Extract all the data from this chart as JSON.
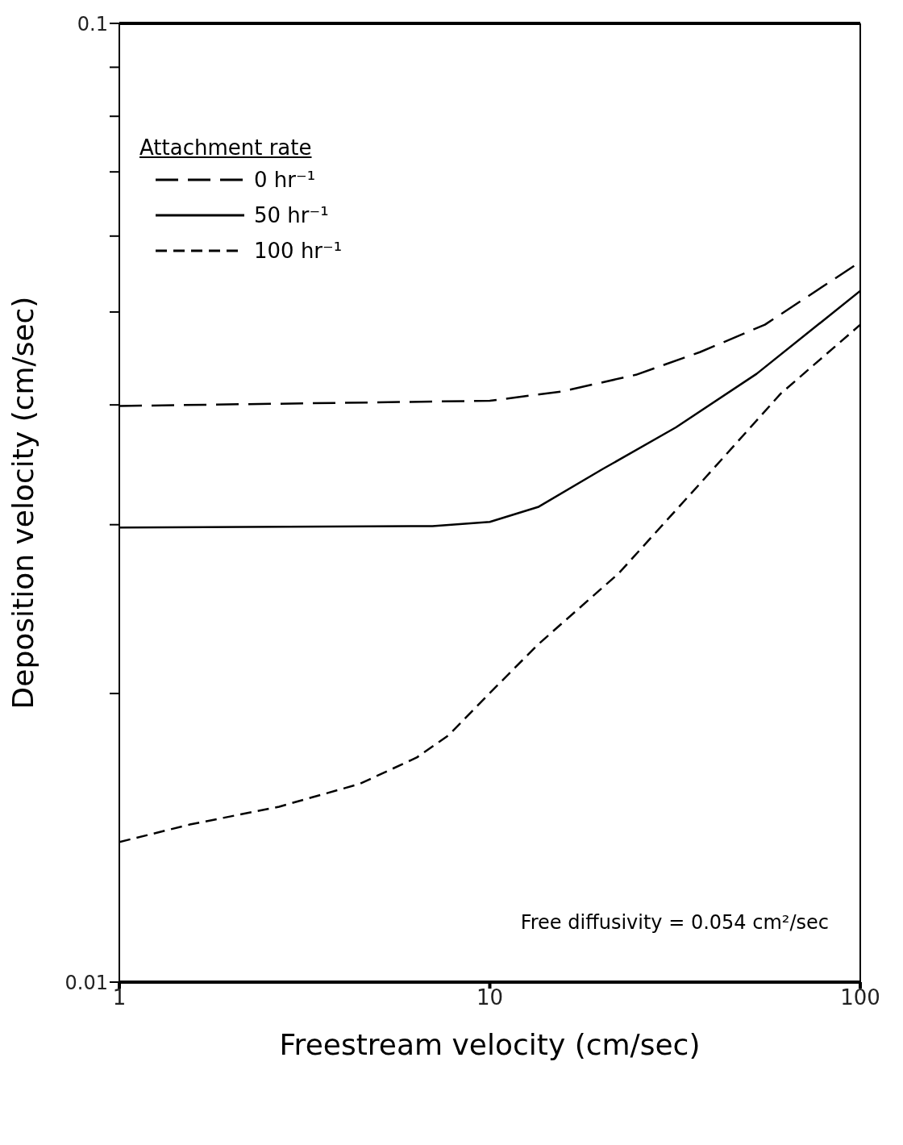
{
  "chart_data": {
    "type": "line",
    "xlabel": "Freestream velocity (cm/sec)",
    "ylabel": "Deposition velocity (cm/sec)",
    "log": "xy",
    "xlim": [
      1,
      100
    ],
    "xticks": [
      1,
      10,
      100
    ],
    "ylim": [
      0.01,
      0.1
    ],
    "yticks": [
      0.01,
      {
        "value": 0.02,
        "label": null
      },
      {
        "value": 0.03,
        "label": null
      },
      {
        "value": 0.04,
        "label": null
      },
      {
        "value": 0.05,
        "label": null
      },
      {
        "value": 0.06,
        "label": null
      },
      {
        "value": 0.07,
        "label": null
      },
      {
        "value": 0.08,
        "label": null
      },
      {
        "value": 0.09,
        "label": null
      },
      0.1
    ],
    "legend": "top left",
    "legend_title": "Attachment rate",
    "marker": "none",
    "annotations": [
      "Free diffusivity = 0.054 cm²/sec"
    ],
    "series": [
      {
        "name": "0 hr⁻¹",
        "color": "#000000",
        "line_style": "dashed",
        "x": [
          1,
          10,
          15.6,
          24.8,
          36.9,
          55.3,
          100
        ],
        "values": [
          0.0399,
          0.0404,
          0.0413,
          0.043,
          0.0454,
          0.0485,
          0.0564
        ]
      },
      {
        "name": "50 hr⁻¹",
        "color": "#000000",
        "line_style": "solid",
        "x": [
          1,
          7,
          10,
          13.5,
          20.2,
          31.8,
          52.5,
          100
        ],
        "values": [
          0.0298,
          0.0299,
          0.0302,
          0.0313,
          0.0343,
          0.0379,
          0.0431,
          0.0526
        ]
      },
      {
        "name": "100 hr⁻¹",
        "color": "#000000",
        "line_style": "dotted",
        "x": [
          1,
          1.55,
          2.7,
          4.46,
          6.35,
          7.75,
          9.97,
          13.5,
          22.3,
          36.9,
          61,
          100
        ],
        "values": [
          0.014,
          0.0146,
          0.01524,
          0.0161,
          0.01715,
          0.0181,
          0.02,
          0.0225,
          0.0267,
          0.0331,
          0.0411,
          0.0485
        ]
      }
    ]
  }
}
